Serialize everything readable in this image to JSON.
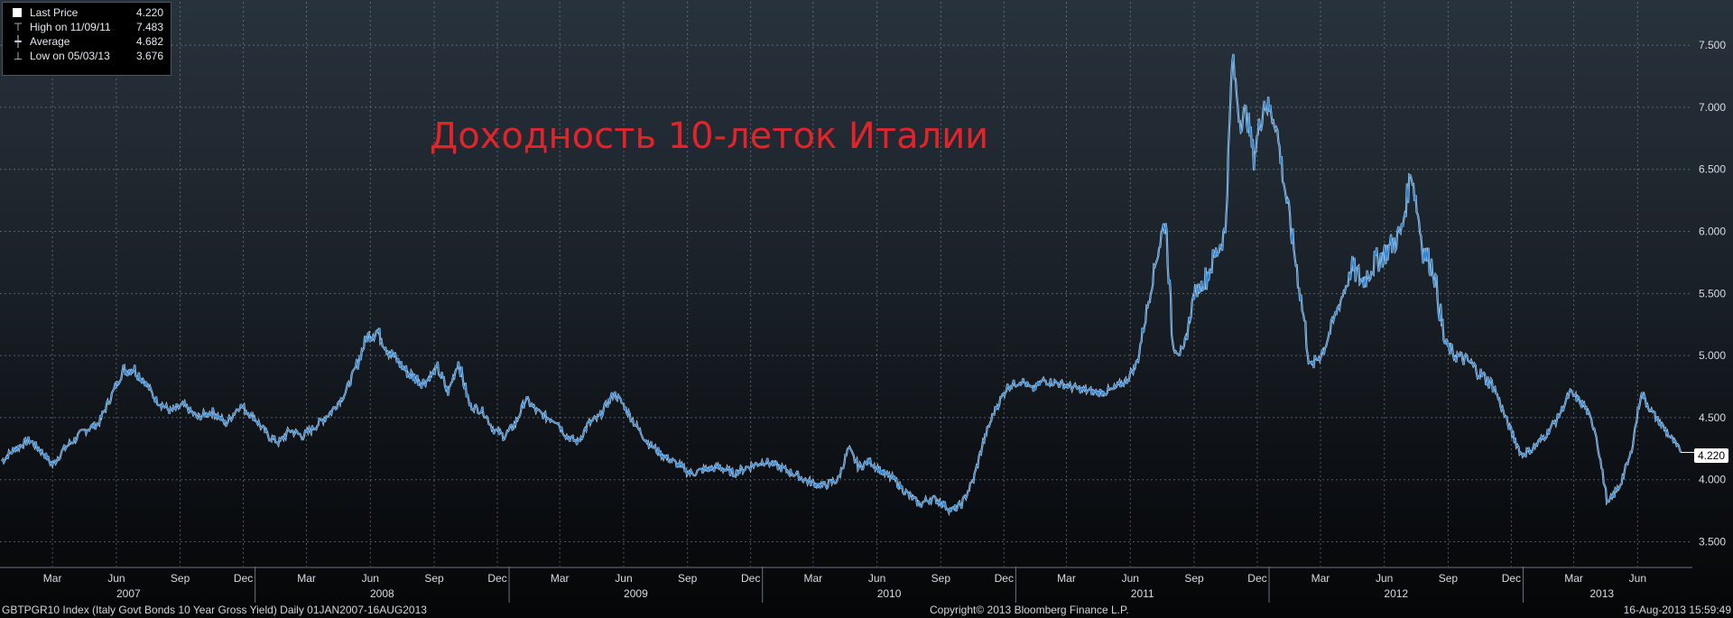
{
  "legend": {
    "rows": [
      {
        "label": "Last Price",
        "value": "4.220",
        "icon": "white-square"
      },
      {
        "label": "High on 11/09/11",
        "value": "7.483",
        "icon": "high-marker-icon"
      },
      {
        "label": "Average",
        "value": "4.682",
        "icon": "average-line-icon"
      },
      {
        "label": "Low on 05/03/13",
        "value": "3.676",
        "icon": "low-marker-icon"
      }
    ]
  },
  "annotation": "Доходность 10-леток Италии",
  "last_badge": "4.220",
  "footer": {
    "left": "GBTPGR10 Index (Italy Govt Bonds 10 Year Gross Yield)  Daily 01JAN2007-16AUG2013",
    "center": "Copyright© 2013 Bloomberg Finance L.P.",
    "right": "16-Aug-2013 15:59:49"
  },
  "colors": {
    "series": "#2a86d8",
    "highlight": "#ffffff",
    "title": "#e1232a",
    "grid": "#8a96a2"
  },
  "chart_data": {
    "type": "line",
    "y_ticks": [
      "3.500",
      "4.000",
      "4.500",
      "5.000",
      "5.500",
      "6.000",
      "6.500",
      "7.000",
      "7.500"
    ],
    "ylim": [
      3.3,
      7.85
    ],
    "x_month_labels": [
      "Mar",
      "Jun",
      "Sep",
      "Dec",
      "Mar",
      "Jun",
      "Sep",
      "Dec",
      "Mar",
      "Jun",
      "Sep",
      "Dec",
      "Mar",
      "Jun",
      "Sep",
      "Dec",
      "Mar",
      "Jun",
      "Sep",
      "Dec",
      "Mar",
      "Jun",
      "Sep",
      "Dec",
      "Mar",
      "Jun"
    ],
    "x_year_labels": [
      "2007",
      "2008",
      "2009",
      "2010",
      "2011",
      "2012",
      "2013"
    ],
    "x_range": [
      "2007-01-01",
      "2013-08-16"
    ],
    "series": [
      {
        "points": [
          [
            "2007-01-01",
            4.15
          ],
          [
            "2007-01-20",
            4.25
          ],
          [
            "2007-02-10",
            4.32
          ],
          [
            "2007-03-01",
            4.22
          ],
          [
            "2007-03-15",
            4.12
          ],
          [
            "2007-04-01",
            4.25
          ],
          [
            "2007-05-01",
            4.4
          ],
          [
            "2007-05-20",
            4.45
          ],
          [
            "2007-06-10",
            4.7
          ],
          [
            "2007-06-25",
            4.88
          ],
          [
            "2007-07-10",
            4.9
          ],
          [
            "2007-07-25",
            4.8
          ],
          [
            "2007-08-10",
            4.65
          ],
          [
            "2007-09-01",
            4.55
          ],
          [
            "2007-09-20",
            4.6
          ],
          [
            "2007-10-10",
            4.5
          ],
          [
            "2007-11-01",
            4.55
          ],
          [
            "2007-11-20",
            4.45
          ],
          [
            "2007-12-10",
            4.6
          ],
          [
            "2007-12-31",
            4.5
          ],
          [
            "2008-01-20",
            4.35
          ],
          [
            "2008-02-05",
            4.3
          ],
          [
            "2008-02-20",
            4.4
          ],
          [
            "2008-03-10",
            4.35
          ],
          [
            "2008-04-01",
            4.45
          ],
          [
            "2008-04-20",
            4.55
          ],
          [
            "2008-05-10",
            4.7
          ],
          [
            "2008-05-25",
            4.9
          ],
          [
            "2008-06-10",
            5.15
          ],
          [
            "2008-06-25",
            5.2
          ],
          [
            "2008-07-10",
            5.05
          ],
          [
            "2008-07-25",
            4.95
          ],
          [
            "2008-08-10",
            4.85
          ],
          [
            "2008-09-01",
            4.78
          ],
          [
            "2008-09-20",
            4.9
          ],
          [
            "2008-10-05",
            4.7
          ],
          [
            "2008-10-20",
            4.95
          ],
          [
            "2008-11-05",
            4.6
          ],
          [
            "2008-11-25",
            4.55
          ],
          [
            "2008-12-10",
            4.4
          ],
          [
            "2008-12-25",
            4.35
          ],
          [
            "2009-01-10",
            4.45
          ],
          [
            "2009-01-25",
            4.65
          ],
          [
            "2009-02-10",
            4.55
          ],
          [
            "2009-02-25",
            4.5
          ],
          [
            "2009-03-10",
            4.48
          ],
          [
            "2009-03-25",
            4.35
          ],
          [
            "2009-04-10",
            4.3
          ],
          [
            "2009-04-25",
            4.45
          ],
          [
            "2009-05-10",
            4.5
          ],
          [
            "2009-06-01",
            4.7
          ],
          [
            "2009-06-15",
            4.6
          ],
          [
            "2009-07-01",
            4.45
          ],
          [
            "2009-07-20",
            4.3
          ],
          [
            "2009-08-10",
            4.2
          ],
          [
            "2009-09-01",
            4.12
          ],
          [
            "2009-09-20",
            4.05
          ],
          [
            "2009-10-10",
            4.08
          ],
          [
            "2009-11-01",
            4.1
          ],
          [
            "2009-11-20",
            4.05
          ],
          [
            "2009-12-10",
            4.1
          ],
          [
            "2010-01-05",
            4.15
          ],
          [
            "2010-01-25",
            4.1
          ],
          [
            "2010-02-15",
            4.05
          ],
          [
            "2010-03-10",
            3.98
          ],
          [
            "2010-03-30",
            3.95
          ],
          [
            "2010-04-20",
            4.0
          ],
          [
            "2010-05-05",
            4.25
          ],
          [
            "2010-05-20",
            4.1
          ],
          [
            "2010-06-05",
            4.15
          ],
          [
            "2010-06-25",
            4.05
          ],
          [
            "2010-07-10",
            4.0
          ],
          [
            "2010-07-30",
            3.88
          ],
          [
            "2010-08-15",
            3.8
          ],
          [
            "2010-09-01",
            3.85
          ],
          [
            "2010-09-15",
            3.82
          ],
          [
            "2010-10-01",
            3.75
          ],
          [
            "2010-10-15",
            3.8
          ],
          [
            "2010-11-01",
            4.0
          ],
          [
            "2010-11-15",
            4.3
          ],
          [
            "2010-12-01",
            4.55
          ],
          [
            "2010-12-20",
            4.75
          ],
          [
            "2011-01-10",
            4.8
          ],
          [
            "2011-01-25",
            4.72
          ],
          [
            "2011-02-10",
            4.8
          ],
          [
            "2011-03-01",
            4.78
          ],
          [
            "2011-03-20",
            4.75
          ],
          [
            "2011-04-10",
            4.72
          ],
          [
            "2011-05-01",
            4.7
          ],
          [
            "2011-05-20",
            4.72
          ],
          [
            "2011-06-10",
            4.8
          ],
          [
            "2011-06-25",
            4.95
          ],
          [
            "2011-07-10",
            5.4
          ],
          [
            "2011-07-25",
            5.85
          ],
          [
            "2011-08-05",
            6.1
          ],
          [
            "2011-08-15",
            5.1
          ],
          [
            "2011-08-30",
            5.0
          ],
          [
            "2011-09-15",
            5.5
          ],
          [
            "2011-09-30",
            5.6
          ],
          [
            "2011-10-15",
            5.8
          ],
          [
            "2011-10-30",
            6.0
          ],
          [
            "2011-11-09",
            7.4
          ],
          [
            "2011-11-20",
            6.9
          ],
          [
            "2011-11-30",
            6.95
          ],
          [
            "2011-12-10",
            6.6
          ],
          [
            "2011-12-25",
            7.05
          ],
          [
            "2012-01-10",
            6.9
          ],
          [
            "2012-01-25",
            6.3
          ],
          [
            "2012-02-10",
            5.7
          ],
          [
            "2012-03-01",
            4.9
          ],
          [
            "2012-03-20",
            5.05
          ],
          [
            "2012-04-10",
            5.4
          ],
          [
            "2012-04-30",
            5.7
          ],
          [
            "2012-05-15",
            5.6
          ],
          [
            "2012-06-01",
            5.75
          ],
          [
            "2012-06-20",
            5.85
          ],
          [
            "2012-07-10",
            6.0
          ],
          [
            "2012-07-24",
            6.5
          ],
          [
            "2012-08-10",
            5.85
          ],
          [
            "2012-08-25",
            5.7
          ],
          [
            "2012-09-10",
            5.1
          ],
          [
            "2012-09-25",
            5.0
          ],
          [
            "2012-10-15",
            4.95
          ],
          [
            "2012-11-01",
            4.85
          ],
          [
            "2012-11-20",
            4.75
          ],
          [
            "2012-12-10",
            4.45
          ],
          [
            "2012-12-30",
            4.2
          ],
          [
            "2013-01-15",
            4.25
          ],
          [
            "2013-02-01",
            4.35
          ],
          [
            "2013-02-20",
            4.5
          ],
          [
            "2013-03-10",
            4.7
          ],
          [
            "2013-03-30",
            4.6
          ],
          [
            "2013-04-15",
            4.4
          ],
          [
            "2013-05-03",
            3.8
          ],
          [
            "2013-05-20",
            3.95
          ],
          [
            "2013-06-05",
            4.2
          ],
          [
            "2013-06-20",
            4.7
          ],
          [
            "2013-07-05",
            4.55
          ],
          [
            "2013-07-25",
            4.4
          ],
          [
            "2013-08-16",
            4.22
          ]
        ]
      }
    ]
  }
}
